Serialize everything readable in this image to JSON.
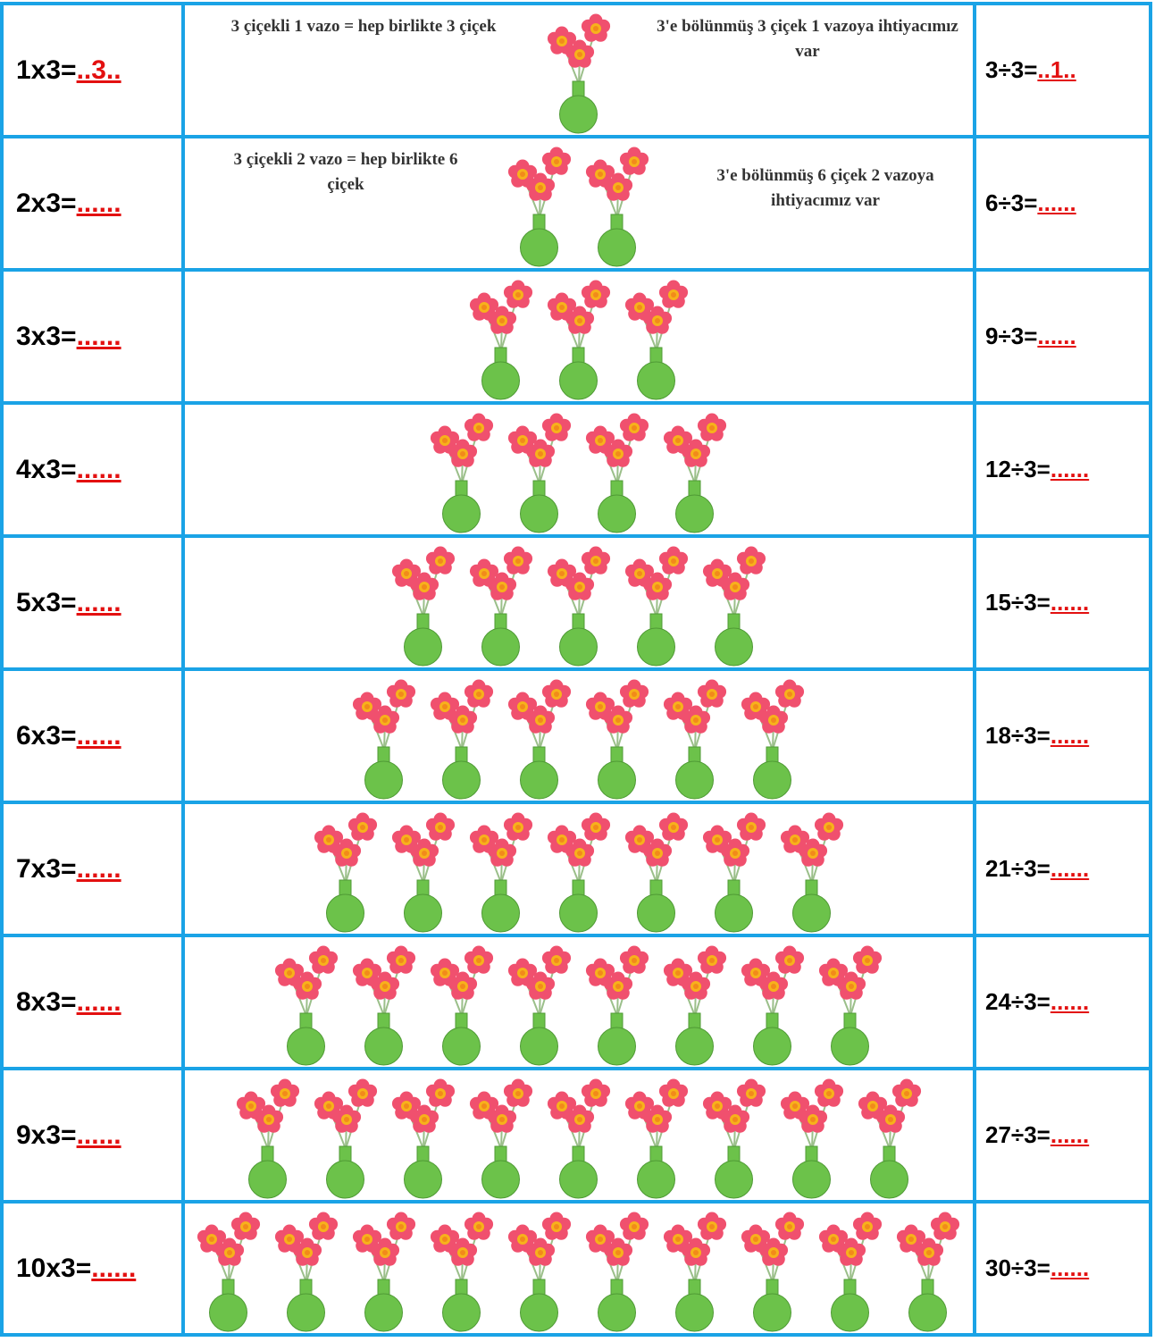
{
  "rows": [
    {
      "left": {
        "expr": "1x3=",
        "answer": "..3.."
      },
      "right": {
        "expr": "3÷3=",
        "answer": "..1.."
      },
      "vases": 1,
      "notes": [
        "3 çiçekli 1 vazo = hep birlikte 3 çiçek",
        "3'e bölünmüş 3 çiçek 1 vazoya ihtiyacımız var"
      ]
    },
    {
      "left": {
        "expr": "2x3=",
        "answer": "......"
      },
      "right": {
        "expr": "6÷3=",
        "answer": "......"
      },
      "vases": 2,
      "notes": [
        "3 çiçekli 2 vazo = hep birlikte 6 çiçek",
        "3'e bölünmüş 6 çiçek 2 vazoya ihtiyacımız var"
      ]
    },
    {
      "left": {
        "expr": "3x3=",
        "answer": "......"
      },
      "right": {
        "expr": "9÷3=",
        "answer": "......"
      },
      "vases": 3
    },
    {
      "left": {
        "expr": "4x3=",
        "answer": "......"
      },
      "right": {
        "expr": "12÷3=",
        "answer": "......"
      },
      "vases": 4
    },
    {
      "left": {
        "expr": "5x3=",
        "answer": "......"
      },
      "right": {
        "expr": "15÷3=",
        "answer": "......"
      },
      "vases": 5
    },
    {
      "left": {
        "expr": "6x3=",
        "answer": "......"
      },
      "right": {
        "expr": "18÷3=",
        "answer": "......"
      },
      "vases": 6
    },
    {
      "left": {
        "expr": "7x3=",
        "answer": "......"
      },
      "right": {
        "expr": "21÷3=",
        "answer": "......"
      },
      "vases": 7
    },
    {
      "left": {
        "expr": "8x3=",
        "answer": "......"
      },
      "right": {
        "expr": "24÷3=",
        "answer": "......"
      },
      "vases": 8
    },
    {
      "left": {
        "expr": "9x3=",
        "answer": "......"
      },
      "right": {
        "expr": "27÷3=",
        "answer": "......"
      },
      "vases": 9
    },
    {
      "left": {
        "expr": "10x3=",
        "answer": "......"
      },
      "right": {
        "expr": "30÷3=",
        "answer": "......"
      },
      "vases": 10
    }
  ]
}
